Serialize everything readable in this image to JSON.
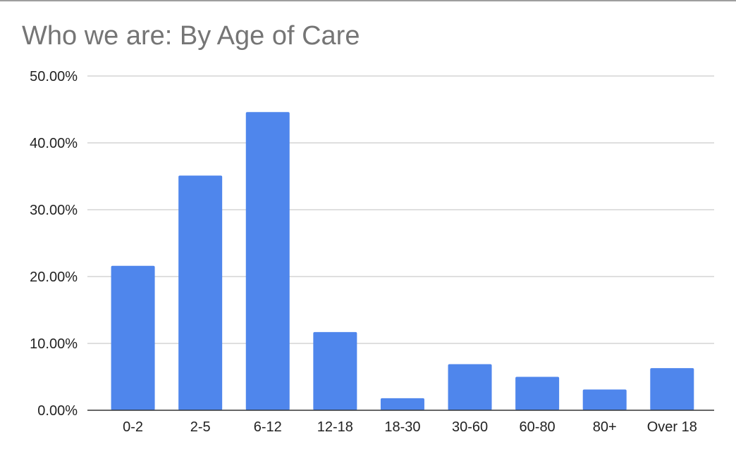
{
  "chart_data": {
    "type": "bar",
    "title": "Who we are: By Age of Care",
    "xlabel": "",
    "ylabel": "",
    "categories": [
      "0-2",
      "2-5",
      "6-12",
      "12-18",
      "18-30",
      "30-60",
      "60-80",
      "80+",
      "Over 18"
    ],
    "values": [
      21.6,
      35.1,
      44.6,
      11.7,
      1.8,
      6.9,
      5.0,
      3.1,
      6.3
    ],
    "y_ticks": [
      "0.00%",
      "10.00%",
      "20.00%",
      "30.00%",
      "40.00%",
      "50.00%"
    ],
    "ylim": [
      0,
      50
    ],
    "grid": true,
    "legend": "none",
    "bar_color": "#4f86ec",
    "gridline_color": "#cccccc",
    "axis_color": "#333333",
    "title_color": "#757575"
  }
}
